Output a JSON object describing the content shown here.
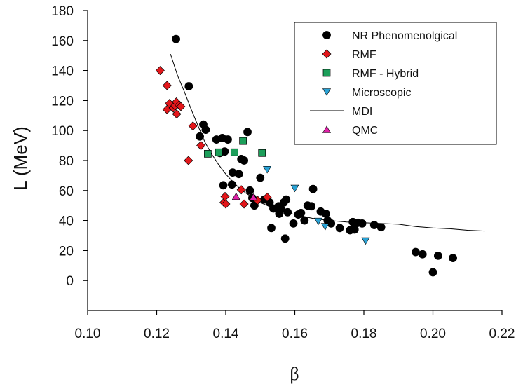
{
  "chart_data": {
    "type": "scatter",
    "title": "",
    "xlabel": "β",
    "ylabel": "L (MeV)",
    "xlim": [
      0.1,
      0.22
    ],
    "ylim": [
      -20,
      180
    ],
    "xticks": [
      "0.10",
      "0.12",
      "0.14",
      "0.16",
      "0.18",
      "0.20",
      "0.22"
    ],
    "yticks": [
      "0",
      "20",
      "40",
      "60",
      "80",
      "100",
      "120",
      "140",
      "160",
      "180"
    ],
    "grid": false,
    "legend_position": "top-right",
    "series": [
      {
        "name": "NR Phenomenolgical",
        "marker": "circle",
        "color": "#000000",
        "points": [
          [
            0.1256,
            161
          ],
          [
            0.1293,
            129.5
          ],
          [
            0.1325,
            96
          ],
          [
            0.1335,
            104
          ],
          [
            0.1342,
            100.5
          ],
          [
            0.1373,
            94
          ],
          [
            0.1383,
            85
          ],
          [
            0.139,
            95
          ],
          [
            0.1397,
            86
          ],
          [
            0.1406,
            94
          ],
          [
            0.1393,
            63.5
          ],
          [
            0.1418,
            64
          ],
          [
            0.142,
            72
          ],
          [
            0.1438,
            71
          ],
          [
            0.1445,
            81
          ],
          [
            0.1453,
            80
          ],
          [
            0.1463,
            99
          ],
          [
            0.147,
            60
          ],
          [
            0.1477,
            55
          ],
          [
            0.1483,
            50
          ],
          [
            0.15,
            68.5
          ],
          [
            0.1512,
            54
          ],
          [
            0.1527,
            52
          ],
          [
            0.1532,
            35
          ],
          [
            0.1538,
            48
          ],
          [
            0.1548,
            48
          ],
          [
            0.1553,
            49.5
          ],
          [
            0.1555,
            44.5
          ],
          [
            0.156,
            47.5
          ],
          [
            0.1568,
            52
          ],
          [
            0.1572,
            28
          ],
          [
            0.1575,
            54
          ],
          [
            0.1579,
            45.5
          ],
          [
            0.1596,
            38
          ],
          [
            0.161,
            44
          ],
          [
            0.1618,
            45
          ],
          [
            0.1628,
            40
          ],
          [
            0.1637,
            50
          ],
          [
            0.1648,
            49.5
          ],
          [
            0.1653,
            61
          ],
          [
            0.1675,
            46
          ],
          [
            0.169,
            44.5
          ],
          [
            0.1695,
            40
          ],
          [
            0.1705,
            38
          ],
          [
            0.173,
            35
          ],
          [
            0.176,
            33.5
          ],
          [
            0.1768,
            39
          ],
          [
            0.1773,
            34
          ],
          [
            0.1783,
            38.5
          ],
          [
            0.1795,
            38
          ],
          [
            0.183,
            37
          ],
          [
            0.185,
            35.5
          ],
          [
            0.195,
            19
          ],
          [
            0.197,
            17.5
          ],
          [
            0.2,
            5.5
          ],
          [
            0.2015,
            16.5
          ],
          [
            0.2058,
            15
          ]
        ]
      },
      {
        "name": "RMF",
        "marker": "diamond",
        "color": "#e3171b",
        "points": [
          [
            0.121,
            140
          ],
          [
            0.123,
            130
          ],
          [
            0.123,
            114
          ],
          [
            0.1237,
            118
          ],
          [
            0.1248,
            115
          ],
          [
            0.1253,
            116.5
          ],
          [
            0.1257,
            119
          ],
          [
            0.1258,
            111
          ],
          [
            0.1265,
            117
          ],
          [
            0.127,
            116
          ],
          [
            0.1292,
            80
          ],
          [
            0.1305,
            103
          ],
          [
            0.1328,
            90
          ],
          [
            0.1395,
            52
          ],
          [
            0.1398,
            56
          ],
          [
            0.14,
            51
          ],
          [
            0.1445,
            60.5
          ],
          [
            0.1453,
            51
          ],
          [
            0.1492,
            53.5
          ],
          [
            0.152,
            55.5
          ]
        ]
      },
      {
        "name": "RMF  - Hybrid",
        "marker": "square",
        "color": "#1c9f5a",
        "points": [
          [
            0.1348,
            84.5
          ],
          [
            0.138,
            85.5
          ],
          [
            0.1425,
            85.5
          ],
          [
            0.145,
            93
          ],
          [
            0.1505,
            85
          ]
        ]
      },
      {
        "name": "Microscopic",
        "marker": "triangle-down",
        "color": "#2aa3d6",
        "points": [
          [
            0.152,
            74
          ],
          [
            0.16,
            61.5
          ],
          [
            0.1668,
            39.5
          ],
          [
            0.1688,
            36
          ],
          [
            0.1805,
            26.5
          ]
        ]
      },
      {
        "name": "MDI",
        "marker": "line",
        "color": "#000000",
        "points": [
          [
            0.124,
            151
          ],
          [
            0.126,
            137
          ],
          [
            0.128,
            126
          ],
          [
            0.13,
            114
          ],
          [
            0.132,
            103
          ],
          [
            0.134,
            92
          ],
          [
            0.136,
            84
          ],
          [
            0.138,
            77
          ],
          [
            0.14,
            71
          ],
          [
            0.142,
            66
          ],
          [
            0.144,
            61.5
          ],
          [
            0.146,
            58
          ],
          [
            0.148,
            55
          ],
          [
            0.15,
            52
          ],
          [
            0.152,
            50
          ],
          [
            0.154,
            48
          ],
          [
            0.156,
            46.5
          ],
          [
            0.158,
            45
          ],
          [
            0.16,
            44
          ],
          [
            0.162,
            43
          ],
          [
            0.165,
            41.5
          ],
          [
            0.17,
            40
          ],
          [
            0.175,
            39
          ],
          [
            0.18,
            38.5
          ],
          [
            0.185,
            38
          ],
          [
            0.19,
            37.5
          ],
          [
            0.195,
            36
          ],
          [
            0.2,
            35
          ],
          [
            0.205,
            34.5
          ],
          [
            0.21,
            33.5
          ],
          [
            0.215,
            33
          ]
        ]
      },
      {
        "name": "QMC",
        "marker": "triangle-up",
        "color": "#e020a8",
        "points": [
          [
            0.143,
            56
          ],
          [
            0.148,
            55.5
          ]
        ]
      }
    ]
  }
}
